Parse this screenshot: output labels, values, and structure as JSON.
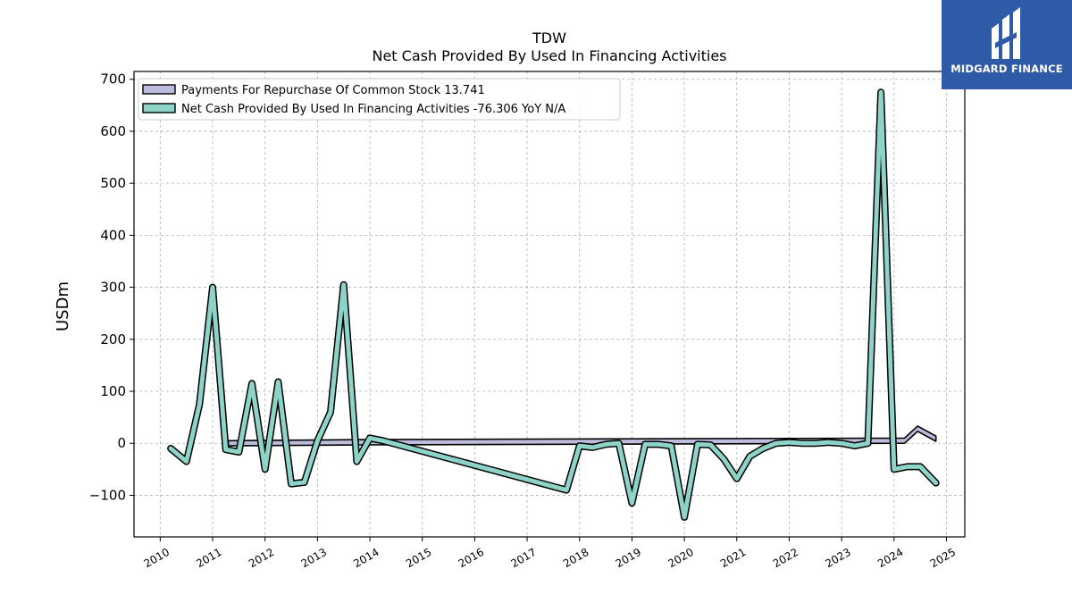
{
  "brand": {
    "name": "MIDGARD FINANCE",
    "bg_color": "#2f5aa8"
  },
  "chart_data": {
    "type": "line",
    "title": "TDW",
    "subtitle": "Net Cash Provided By Used In Financing Activities",
    "ylabel": "USDm",
    "xlabel": "",
    "xlim": [
      2009.5,
      2025.35
    ],
    "ylim": [
      -180,
      715
    ],
    "yticks": [
      -100,
      0,
      100,
      200,
      300,
      400,
      500,
      600,
      700
    ],
    "ytick_labels": [
      "−100",
      "0",
      "100",
      "200",
      "300",
      "400",
      "500",
      "600",
      "700"
    ],
    "xticks": [
      2010,
      2011,
      2012,
      2013,
      2014,
      2015,
      2016,
      2017,
      2018,
      2019,
      2020,
      2021,
      2022,
      2023,
      2024,
      2025
    ],
    "xtick_labels": [
      "2010",
      "2011",
      "2012",
      "2013",
      "2014",
      "2015",
      "2016",
      "2017",
      "2018",
      "2019",
      "2020",
      "2021",
      "2022",
      "2023",
      "2024",
      "2025"
    ],
    "grid": true,
    "legend_position": "top-left",
    "series": [
      {
        "name": "Payments For Repurchase Of Common Stock",
        "legend_label": "Payments For Repurchase Of Common Stock  13.741",
        "color": "#bcbddc",
        "kind": "area",
        "x": [
          2011.3,
          2014.0,
          2024.2,
          2024.45,
          2024.8
        ],
        "y": [
          5,
          7,
          10,
          33,
          13.741
        ]
      },
      {
        "name": "Net Cash Provided By Used In Financing Activities",
        "legend_label": "Net Cash Provided By Used In Financing Activities  -76.306 YoY N/A",
        "color": "#8dd3c7",
        "kind": "line",
        "x": [
          2010.2,
          2010.5,
          2010.75,
          2011.0,
          2011.25,
          2011.5,
          2011.75,
          2012.0,
          2012.25,
          2012.5,
          2012.75,
          2013.0,
          2013.25,
          2013.5,
          2013.75,
          2014.0,
          2014.25,
          2017.75,
          2018.0,
          2018.25,
          2018.5,
          2018.75,
          2019.0,
          2019.25,
          2019.5,
          2019.75,
          2020.0,
          2020.25,
          2020.5,
          2020.75,
          2021.0,
          2021.25,
          2021.5,
          2021.75,
          2022.0,
          2022.25,
          2022.5,
          2022.75,
          2023.0,
          2023.25,
          2023.5,
          2023.75,
          2024.0,
          2024.25,
          2024.5,
          2024.8
        ],
        "y": [
          -10,
          -35,
          75,
          300,
          -12,
          -17,
          115,
          -50,
          118,
          -78,
          -75,
          5,
          60,
          305,
          -35,
          10,
          5,
          -90,
          -5,
          -8,
          -2,
          0,
          -115,
          -2,
          -2,
          -5,
          -142,
          -2,
          -3,
          -30,
          -68,
          -25,
          -10,
          0,
          2,
          0,
          0,
          2,
          0,
          -5,
          0,
          675,
          -50,
          -45,
          -45,
          -76.306
        ]
      }
    ]
  }
}
